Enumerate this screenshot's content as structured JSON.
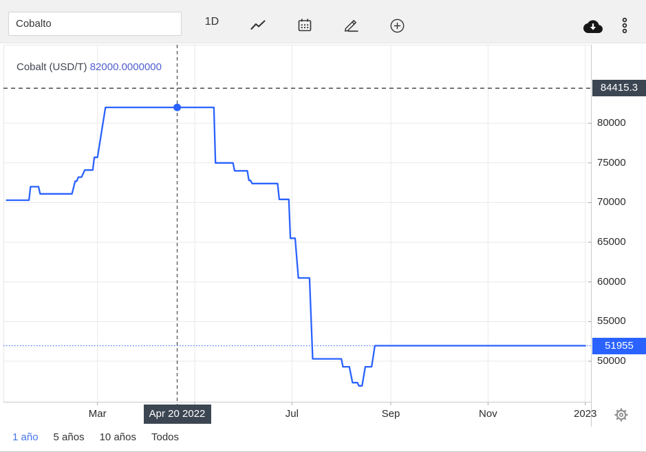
{
  "toolbar": {
    "symbol_input": {
      "value": "Cobalto"
    },
    "interval_label": "1D",
    "icons": [
      "line-chart-icon",
      "calendar-icon",
      "draw-pencil-icon",
      "add-circle-icon",
      "cloud-download-icon",
      "kebab-menu-icon"
    ]
  },
  "legend": {
    "title": "Cobalt (USD/T)",
    "value": "82000.0000000"
  },
  "crosshair": {
    "date": "2022-04-20",
    "date_label": "Apr 20 2022",
    "price": 84415.3,
    "price_label": "84415.3",
    "snap_value": 82000
  },
  "current_price": {
    "value": 51955,
    "label": "51955"
  },
  "range": {
    "buttons": [
      {
        "label": "1 año",
        "active": true
      },
      {
        "label": "5 años",
        "active": false
      },
      {
        "label": "10 años",
        "active": false
      },
      {
        "label": "Todos",
        "active": false
      }
    ]
  },
  "colors": {
    "line_blue": "#2962ff",
    "value_blue": "#4f5ed0",
    "badge_dark": "#3c4652",
    "badge_blue": "#2962ff",
    "active_range_blue": "#4673ea",
    "grid": "#e9e9e9",
    "axis_line": "#c9c9c9",
    "crosshair": "#5f5f5f",
    "toolbar_bg": "#f1f1f1"
  },
  "chart_data": {
    "type": "line",
    "title": "Cobalt (USD/T)",
    "xlabel": "",
    "ylabel": "",
    "x_domain": [
      "2022-01-01",
      "2023-01-05"
    ],
    "ylim": [
      44800,
      89900
    ],
    "y_ticks": [
      50000,
      55000,
      60000,
      65000,
      70000,
      75000,
      80000
    ],
    "x_ticks": [
      {
        "date": "2022-03-01",
        "label": "Mar"
      },
      {
        "date": "2022-05-01",
        "label": ""
      },
      {
        "date": "2022-07-01",
        "label": "Jul"
      },
      {
        "date": "2022-09-01",
        "label": "Sep"
      },
      {
        "date": "2022-11-01",
        "label": "Nov"
      },
      {
        "date": "2023-01-01",
        "label": "2023"
      }
    ],
    "grid": true,
    "legend_position": "top-left",
    "series": [
      {
        "name": "Cobalt (USD/T)",
        "points": [
          [
            "2022-01-03",
            70300
          ],
          [
            "2022-01-17",
            70300
          ],
          [
            "2022-01-18",
            72000
          ],
          [
            "2022-01-23",
            72000
          ],
          [
            "2022-01-24",
            71100
          ],
          [
            "2022-02-13",
            71100
          ],
          [
            "2022-02-15",
            72700
          ],
          [
            "2022-02-16",
            72700
          ],
          [
            "2022-02-17",
            73200
          ],
          [
            "2022-02-19",
            73200
          ],
          [
            "2022-02-21",
            74100
          ],
          [
            "2022-02-26",
            74100
          ],
          [
            "2022-02-27",
            75700
          ],
          [
            "2022-03-01",
            75700
          ],
          [
            "2022-03-06",
            82000
          ],
          [
            "2022-05-13",
            82000
          ],
          [
            "2022-05-14",
            75000
          ],
          [
            "2022-05-25",
            75000
          ],
          [
            "2022-05-26",
            74000
          ],
          [
            "2022-06-03",
            74000
          ],
          [
            "2022-06-04",
            72800
          ],
          [
            "2022-06-05",
            72800
          ],
          [
            "2022-06-06",
            72400
          ],
          [
            "2022-06-22",
            72400
          ],
          [
            "2022-06-23",
            70400
          ],
          [
            "2022-06-29",
            70400
          ],
          [
            "2022-06-30",
            65500
          ],
          [
            "2022-07-03",
            65500
          ],
          [
            "2022-07-05",
            60500
          ],
          [
            "2022-07-12",
            60500
          ],
          [
            "2022-07-14",
            50300
          ],
          [
            "2022-08-01",
            50300
          ],
          [
            "2022-08-02",
            49300
          ],
          [
            "2022-08-06",
            49300
          ],
          [
            "2022-08-08",
            47300
          ],
          [
            "2022-08-11",
            47300
          ],
          [
            "2022-08-12",
            46900
          ],
          [
            "2022-08-14",
            46900
          ],
          [
            "2022-08-16",
            49300
          ],
          [
            "2022-08-20",
            49300
          ],
          [
            "2022-08-22",
            51955
          ],
          [
            "2023-01-01",
            51955
          ]
        ]
      }
    ]
  }
}
